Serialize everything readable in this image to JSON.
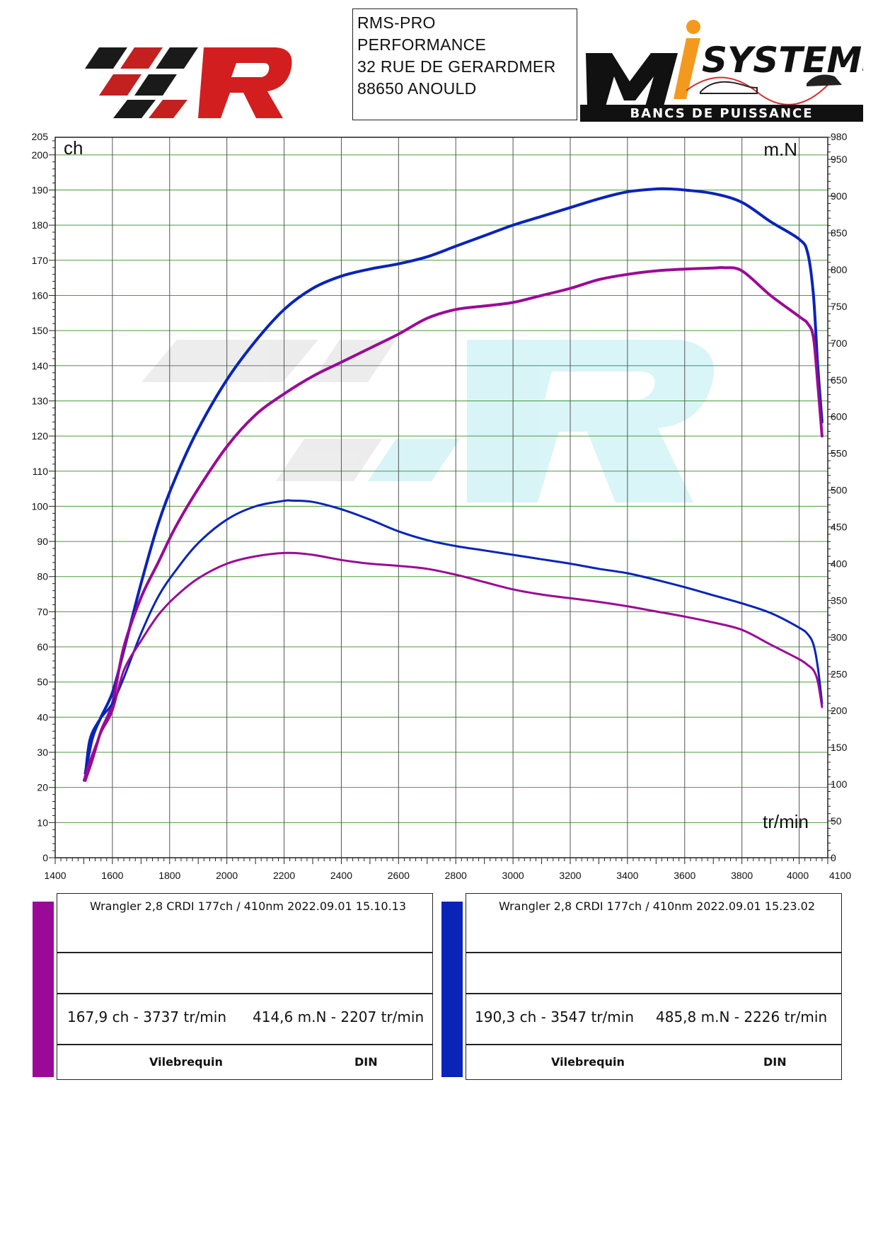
{
  "header": {
    "address_lines": [
      "RMS-PRO",
      "PERFORMANCE",
      "32 RUE DE GERARDMER",
      "88650 ANOULD"
    ],
    "right_logo": {
      "main_text": "SYSTEMS",
      "tagline": "BANCS DE PUISSANCE"
    }
  },
  "colors": {
    "run1": "#9a0a96",
    "run2": "#0a24b8",
    "grid_h": "#4a9a3a",
    "grid_v": "#555555"
  },
  "chart_data": {
    "type": "line",
    "xlabel": "tr/min",
    "ylabel_left": "ch",
    "ylabel_right": "m.N",
    "xlim": [
      1400,
      4100
    ],
    "ylim_left": [
      0,
      205
    ],
    "ylim_right": [
      0,
      980
    ],
    "x_ticks": [
      1400,
      1600,
      1800,
      2000,
      2200,
      2400,
      2600,
      2800,
      3000,
      3200,
      3400,
      3600,
      3800,
      4000,
      4100
    ],
    "y_left_ticks": [
      0,
      10,
      20,
      30,
      40,
      50,
      60,
      70,
      80,
      90,
      100,
      110,
      120,
      130,
      140,
      150,
      160,
      170,
      180,
      190,
      200,
      205
    ],
    "y_right_ticks": [
      0,
      50,
      100,
      150,
      200,
      250,
      300,
      350,
      400,
      450,
      500,
      550,
      600,
      650,
      700,
      750,
      800,
      850,
      900,
      950,
      980
    ],
    "series": [
      {
        "name": "Wrangler 2,8 CRDI 177ch / 410nm   2022.09.01  15.23.02",
        "quantity": "power",
        "axis": "left",
        "color": "#0a24b8",
        "x": [
          1505,
          1530,
          1560,
          1600,
          1640,
          1700,
          1760,
          1820,
          1900,
          2000,
          2100,
          2200,
          2300,
          2400,
          2500,
          2600,
          2700,
          2800,
          2900,
          3000,
          3100,
          3200,
          3300,
          3400,
          3500,
          3550,
          3600,
          3700,
          3800,
          3900,
          4000,
          4030,
          4050,
          4065,
          4080
        ],
        "y": [
          24,
          34,
          40,
          47,
          59,
          78,
          95,
          108,
          122,
          136,
          147,
          156,
          162,
          165.5,
          167.5,
          169,
          171,
          174,
          177,
          180,
          182.5,
          185,
          187.5,
          189.5,
          190.3,
          190.3,
          190,
          189,
          186.5,
          181,
          176,
          172,
          160,
          140,
          124
        ]
      },
      {
        "name": "Wrangler 2,8 CRDI 177ch / 410nm   2022.09.01  15.10.13",
        "quantity": "power",
        "axis": "left",
        "color": "#9a0a96",
        "x": [
          1505,
          1530,
          1560,
          1600,
          1640,
          1700,
          1760,
          1820,
          1900,
          2000,
          2100,
          2200,
          2300,
          2400,
          2500,
          2600,
          2700,
          2800,
          2900,
          3000,
          3100,
          3200,
          3300,
          3400,
          3500,
          3600,
          3700,
          3737,
          3800,
          3900,
          4000,
          4030,
          4050,
          4065,
          4080
        ],
        "y": [
          22,
          28,
          36,
          44,
          60,
          74,
          84,
          94,
          105,
          117,
          126,
          132,
          137,
          141,
          145,
          149,
          153.5,
          156,
          157,
          158,
          160,
          162,
          164.5,
          166,
          167,
          167.5,
          167.8,
          167.9,
          167,
          160,
          154,
          152,
          148,
          135,
          120
        ]
      },
      {
        "name": "Wrangler 2,8 CRDI 177ch / 410nm   2022.09.01  15.23.02",
        "quantity": "torque",
        "axis": "right",
        "color": "#0a24b8",
        "x": [
          1505,
          1520,
          1550,
          1600,
          1640,
          1700,
          1760,
          1820,
          1900,
          2000,
          2100,
          2200,
          2226,
          2300,
          2400,
          2500,
          2600,
          2700,
          2800,
          2900,
          3000,
          3100,
          3200,
          3300,
          3400,
          3500,
          3600,
          3700,
          3800,
          3900,
          4000,
          4030,
          4050,
          4065,
          4080
        ],
        "y": [
          115,
          160,
          185,
          210,
          245,
          305,
          355,
          390,
          428,
          460,
          478,
          485.5,
          485.8,
          484,
          474,
          460,
          444,
          432,
          424,
          418,
          412,
          406,
          400,
          393,
          387,
          378,
          368,
          357,
          346,
          333,
          313,
          304,
          290,
          260,
          210
        ]
      },
      {
        "name": "Wrangler 2,8 CRDI 177ch / 410nm   2022.09.01  15.10.13",
        "quantity": "torque",
        "axis": "right",
        "color": "#9a0a96",
        "x": [
          1500,
          1520,
          1560,
          1600,
          1640,
          1700,
          1760,
          1820,
          1900,
          2000,
          2100,
          2207,
          2300,
          2400,
          2500,
          2600,
          2700,
          2800,
          2900,
          3000,
          3100,
          3200,
          3300,
          3400,
          3500,
          3600,
          3700,
          3800,
          3900,
          4000,
          4030,
          4050,
          4065,
          4080
        ],
        "y": [
          105,
          130,
          170,
          200,
          255,
          295,
          330,
          355,
          380,
          400,
          410,
          414.6,
          412,
          405,
          400,
          397,
          393,
          385,
          375,
          365,
          358,
          353,
          348,
          342,
          335,
          328,
          320,
          310,
          290,
          270,
          262,
          255,
          240,
          205
        ]
      }
    ]
  },
  "legend": [
    {
      "title": "Wrangler 2,8 CRDI 177ch / 410nm   2022.09.01  15.10.13",
      "power": "167,9 ch - 3737 tr/min",
      "torque": "414,6 m.N - 2207 tr/min",
      "left_foot": "Vilebrequin",
      "right_foot": "DIN",
      "color": "#9a0a96"
    },
    {
      "title": "Wrangler 2,8 CRDI 177ch / 410nm   2022.09.01  15.23.02",
      "power": "190,3 ch - 3547 tr/min",
      "torque": "485,8 m.N - 2226 tr/min",
      "left_foot": "Vilebrequin",
      "right_foot": "DIN",
      "color": "#0a24b8"
    }
  ]
}
